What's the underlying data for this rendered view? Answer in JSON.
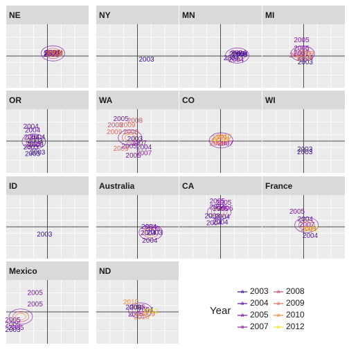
{
  "chart_data": {
    "type": "scatter",
    "layout": "facet-grid",
    "legend": {
      "title": "Year",
      "position": "bottom-right",
      "entries": [
        {
          "label": "2003",
          "color": "#3a0f8f"
        },
        {
          "label": "2004",
          "color": "#5a0fa0"
        },
        {
          "label": "2005",
          "color": "#7b13a4"
        },
        {
          "label": "2007",
          "color": "#8e1a9c"
        },
        {
          "label": "2008",
          "color": "#c8506a"
        },
        {
          "label": "2009",
          "color": "#e06c5c"
        },
        {
          "label": "2010",
          "color": "#f08b3d"
        },
        {
          "label": "2012",
          "color": "#f0e030"
        }
      ]
    },
    "facets": [
      {
        "name": "NE",
        "points": [
          {
            "label": "2004",
            "year": "2004",
            "x": 0.55,
            "y": 0.5
          },
          {
            "label": "2004",
            "year": "2004",
            "x": 0.65,
            "y": 0.53
          },
          {
            "label": "2003",
            "year": "2003",
            "x": 0.48,
            "y": 0.42
          },
          {
            "label": "2009",
            "year": "2009",
            "x": 0.62,
            "y": 0.4
          },
          {
            "label": "2005",
            "year": "2005",
            "x": 0.55,
            "y": 0.45
          },
          {
            "label": "2010",
            "year": "2010",
            "x": 0.8,
            "y": 0.35
          },
          {
            "label": "2003",
            "year": "2003",
            "x": 0.45,
            "y": 0.22
          },
          {
            "label": "2008",
            "year": "2008",
            "x": 0.7,
            "y": 0.3
          },
          {
            "label": "2004",
            "year": "2004",
            "x": 0.95,
            "y": 0.45
          },
          {
            "label": "2010",
            "year": "2010",
            "x": 0.95,
            "y": 0.55
          }
        ]
      },
      {
        "name": "NY",
        "points": [
          {
            "label": "2003",
            "year": "2003",
            "x": 1.1,
            "y": -0.55
          }
        ]
      },
      {
        "name": "MN",
        "points": [
          {
            "label": "2004",
            "year": "2004",
            "x": 2.2,
            "y": 0.5
          },
          {
            "label": "2003",
            "year": "2003",
            "x": 2.0,
            "y": 0.35
          },
          {
            "label": "2004",
            "year": "2004",
            "x": 2.4,
            "y": 0.35
          },
          {
            "label": "2004",
            "year": "2004",
            "x": 1.3,
            "y": -0.3
          },
          {
            "label": "2004",
            "year": "2004",
            "x": 1.9,
            "y": -0.6
          },
          {
            "label": "2003",
            "year": "2003",
            "x": 2.3,
            "y": 0.15
          }
        ]
      },
      {
        "name": "MI",
        "points": [
          {
            "label": "2005",
            "year": "2005",
            "x": -0.25,
            "y": 2.5
          },
          {
            "label": "2005",
            "year": "2005",
            "x": -0.25,
            "y": 1.2
          },
          {
            "label": "2009",
            "year": "2009",
            "x": 0.3,
            "y": 0.4
          },
          {
            "label": "2004",
            "year": "2004",
            "x": 0.2,
            "y": -0.25
          },
          {
            "label": "2008",
            "year": "2008",
            "x": -0.8,
            "y": 0.1
          },
          {
            "label": "2003",
            "year": "2003",
            "x": 0.2,
            "y": -1.0
          },
          {
            "label": "2010",
            "year": "2010",
            "x": 0.0,
            "y": -0.35
          },
          {
            "label": "2007",
            "year": "2007",
            "x": -0.3,
            "y": 0.4
          }
        ]
      },
      {
        "name": "OR",
        "points": [
          {
            "label": "2004",
            "year": "2004",
            "x": -2.0,
            "y": 2.3
          },
          {
            "label": "2004",
            "year": "2004",
            "x": -1.8,
            "y": 1.7
          },
          {
            "label": "2004",
            "year": "2004",
            "x": -1.9,
            "y": 0.6
          },
          {
            "label": "2004",
            "year": "2004",
            "x": -1.2,
            "y": 0.6
          },
          {
            "label": "2003",
            "year": "2003",
            "x": -1.5,
            "y": 0.0
          },
          {
            "label": "2003",
            "year": "2003",
            "x": -1.4,
            "y": -0.6
          },
          {
            "label": "2003",
            "year": "2003",
            "x": -2.0,
            "y": -1.0
          },
          {
            "label": "2003",
            "year": "2003",
            "x": -1.8,
            "y": -2.0
          },
          {
            "label": "2003",
            "year": "2003",
            "x": -1.2,
            "y": -1.8
          },
          {
            "label": "2005",
            "year": "2005",
            "x": -1.7,
            "y": -0.5
          }
        ]
      },
      {
        "name": "WA",
        "points": [
          {
            "label": "2005",
            "year": "2005",
            "x": -2.0,
            "y": 3.5
          },
          {
            "label": "2008",
            "year": "2008",
            "x": -0.3,
            "y": 3.2
          },
          {
            "label": "2008",
            "year": "2008",
            "x": -2.7,
            "y": 2.5
          },
          {
            "label": "2009",
            "year": "2009",
            "x": -1.2,
            "y": 2.5
          },
          {
            "label": "2009",
            "year": "2009",
            "x": -2.8,
            "y": 1.4
          },
          {
            "label": "2008",
            "year": "2008",
            "x": -0.8,
            "y": 1.4
          },
          {
            "label": "2003",
            "year": "2003",
            "x": -0.3,
            "y": 0.3
          },
          {
            "label": "2007",
            "year": "2007",
            "x": 0.2,
            "y": -0.3
          },
          {
            "label": "2005",
            "year": "2005",
            "x": -1.0,
            "y": -0.8
          },
          {
            "label": "2004",
            "year": "2004",
            "x": 0.8,
            "y": -1.0
          },
          {
            "label": "2009",
            "year": "2009",
            "x": -2.0,
            "y": -1.2
          },
          {
            "label": "2005",
            "year": "2005",
            "x": -0.5,
            "y": -2.3
          },
          {
            "label": "2007",
            "year": "2007",
            "x": 0.8,
            "y": -1.9
          }
        ]
      },
      {
        "name": "CO",
        "points": [
          {
            "label": "2010",
            "year": "2010",
            "x": 0.4,
            "y": 0.7
          },
          {
            "label": "2009",
            "year": "2009",
            "x": -0.2,
            "y": 0.5
          },
          {
            "label": "2010",
            "year": "2010",
            "x": 0.0,
            "y": 0.0
          },
          {
            "label": "2007",
            "year": "2007",
            "x": 0.6,
            "y": -0.4
          },
          {
            "label": "2008",
            "year": "2008",
            "x": -0.4,
            "y": -0.4
          },
          {
            "label": "2012",
            "year": "2012",
            "x": 0.0,
            "y": 0.3
          }
        ]
      },
      {
        "name": "WI",
        "points": [
          {
            "label": "2003",
            "year": "2003",
            "x": 0.15,
            "y": -1.3
          },
          {
            "label": "2003",
            "year": "2003",
            "x": 0.15,
            "y": -1.75
          }
        ]
      },
      {
        "name": "ID",
        "points": [
          {
            "label": "2003",
            "year": "2003",
            "x": -0.35,
            "y": -1.2
          }
        ]
      },
      {
        "name": "Australia",
        "points": [
          {
            "label": "2004",
            "year": "2004",
            "x": 1.4,
            "y": 0.0
          },
          {
            "label": "2005",
            "year": "2005",
            "x": 1.8,
            "y": -0.3
          },
          {
            "label": "2004",
            "year": "2004",
            "x": 1.3,
            "y": -1.0
          },
          {
            "label": "2004",
            "year": "2004",
            "x": 1.5,
            "y": -2.2
          },
          {
            "label": "2003",
            "year": "2003",
            "x": 2.1,
            "y": -0.9
          }
        ]
      },
      {
        "name": "CA",
        "points": [
          {
            "label": "2005",
            "year": "2005",
            "x": -0.4,
            "y": 4.0
          },
          {
            "label": "2005",
            "year": "2005",
            "x": 0.4,
            "y": 3.8
          },
          {
            "label": "2004",
            "year": "2004",
            "x": -0.4,
            "y": 3.1
          },
          {
            "label": "2005",
            "year": "2005",
            "x": 0.0,
            "y": 2.8
          },
          {
            "label": "2005",
            "year": "2005",
            "x": 0.6,
            "y": 2.9
          },
          {
            "label": "2003",
            "year": "2003",
            "x": -1.0,
            "y": 1.7
          },
          {
            "label": "2004",
            "year": "2004",
            "x": -0.8,
            "y": 0.6
          },
          {
            "label": "2004",
            "year": "2004",
            "x": 0.0,
            "y": 0.7
          },
          {
            "label": "2004",
            "year": "2004",
            "x": 0.2,
            "y": 1.6
          }
        ]
      },
      {
        "name": "France",
        "points": [
          {
            "label": "2005",
            "year": "2005",
            "x": -0.8,
            "y": 2.4
          },
          {
            "label": "2004",
            "year": "2004",
            "x": 0.2,
            "y": 1.2
          },
          {
            "label": "2007",
            "year": "2007",
            "x": 0.4,
            "y": 0.3
          },
          {
            "label": "2008",
            "year": "2008",
            "x": 0.6,
            "y": -0.3
          },
          {
            "label": "2012",
            "year": "2012",
            "x": 0.9,
            "y": -0.4
          },
          {
            "label": "2004",
            "year": "2004",
            "x": 0.8,
            "y": -1.4
          }
        ]
      },
      {
        "name": "Mexico",
        "points": [
          {
            "label": "2005",
            "year": "2005",
            "x": -1.5,
            "y": 3.0
          },
          {
            "label": "2005",
            "year": "2005",
            "x": -1.5,
            "y": 1.2
          },
          {
            "label": "2005",
            "year": "2005",
            "x": -4.2,
            "y": -1.3
          },
          {
            "label": "2005",
            "year": "2005",
            "x": -4.2,
            "y": -2.0
          },
          {
            "label": "2005",
            "year": "2005",
            "x": -3.8,
            "y": -2.5
          },
          {
            "label": "2003",
            "year": "2003",
            "x": -4.2,
            "y": -2.8
          }
        ]
      },
      {
        "name": "ND",
        "points": [
          {
            "label": "2010",
            "year": "2010",
            "x": -0.8,
            "y": 1.5
          },
          {
            "label": "2005",
            "year": "2005",
            "x": 0.0,
            "y": 0.7
          },
          {
            "label": "2003",
            "year": "2003",
            "x": -0.5,
            "y": 0.7
          },
          {
            "label": "2004",
            "year": "2004",
            "x": 1.0,
            "y": 0.3
          },
          {
            "label": "2005",
            "year": "2005",
            "x": -0.2,
            "y": -0.4
          },
          {
            "label": "2009",
            "year": "2009",
            "x": 1.2,
            "y": -0.3
          },
          {
            "label": "2010",
            "year": "2010",
            "x": 0.5,
            "y": -0.8
          },
          {
            "label": "2012",
            "year": "2012",
            "x": 1.6,
            "y": 0.1
          }
        ]
      }
    ]
  }
}
